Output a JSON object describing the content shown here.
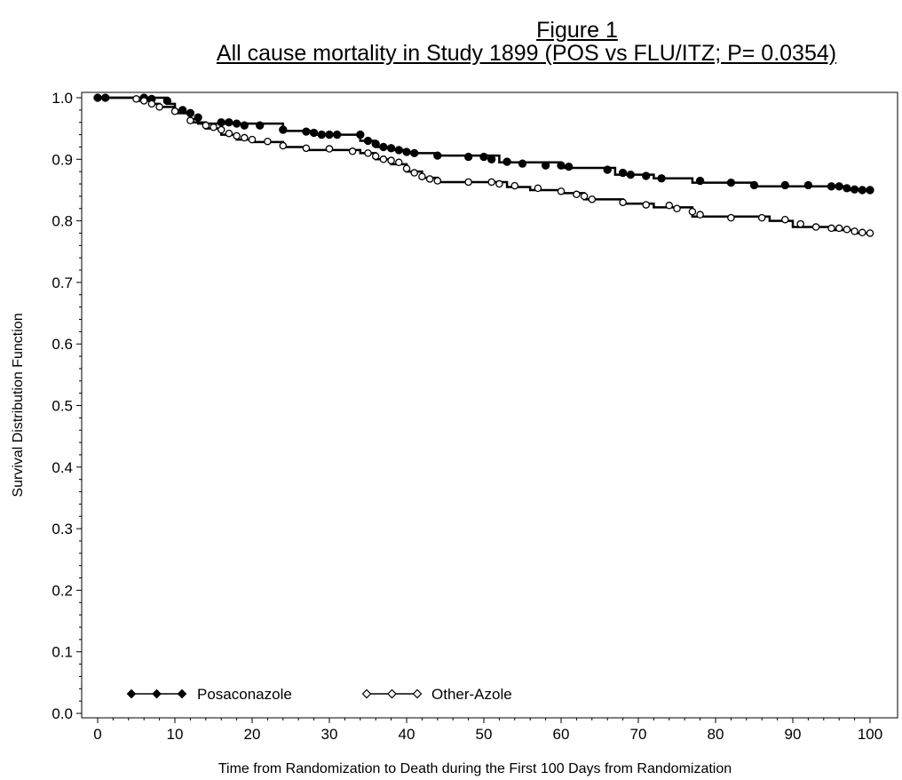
{
  "title": "Figure 1",
  "subtitle": "All cause mortality in Study 1899 (POS vs FLU/ITZ; P= 0.0354)",
  "chart_data": {
    "type": "line",
    "step": true,
    "title": "Figure 1",
    "subtitle": "All cause mortality in Study 1899 (POS vs FLU/ITZ; P= 0.0354)",
    "xlabel": "Time from Randomization to Death during the First 100 Days from Randomization",
    "ylabel": "Survival Distribution Function",
    "xlim": [
      0,
      100
    ],
    "ylim": [
      0.0,
      1.0
    ],
    "x_ticks": [
      "0",
      "10",
      "20",
      "30",
      "40",
      "50",
      "60",
      "70",
      "80",
      "90",
      "100"
    ],
    "y_ticks": [
      "0.0",
      "0.1",
      "0.2",
      "0.3",
      "0.4",
      "0.5",
      "0.6",
      "0.7",
      "0.8",
      "0.9",
      "1.0"
    ],
    "grid": false,
    "legend_position": "bottom-left",
    "series": [
      {
        "name": "Posaconazole",
        "marker": "filled-circle",
        "color": "#000000",
        "steps": [
          [
            0,
            1.0
          ],
          [
            9,
            0.99
          ],
          [
            10,
            0.98
          ],
          [
            11,
            0.975
          ],
          [
            12,
            0.965
          ],
          [
            13,
            0.958
          ],
          [
            24,
            0.946
          ],
          [
            28,
            0.94
          ],
          [
            34,
            0.93
          ],
          [
            36,
            0.92
          ],
          [
            38,
            0.915
          ],
          [
            40,
            0.91
          ],
          [
            44,
            0.906
          ],
          [
            52,
            0.895
          ],
          [
            60,
            0.886
          ],
          [
            67,
            0.875
          ],
          [
            72,
            0.869
          ],
          [
            77,
            0.862
          ],
          [
            85,
            0.856
          ],
          [
            97,
            0.85
          ],
          [
            100,
            0.85
          ]
        ],
        "markers": [
          [
            0,
            1.0
          ],
          [
            1,
            1.0
          ],
          [
            6,
            1.0
          ],
          [
            7,
            0.998
          ],
          [
            9,
            0.995
          ],
          [
            11,
            0.98
          ],
          [
            12,
            0.975
          ],
          [
            13,
            0.968
          ],
          [
            16,
            0.96
          ],
          [
            17,
            0.96
          ],
          [
            18,
            0.958
          ],
          [
            19,
            0.955
          ],
          [
            21,
            0.955
          ],
          [
            24,
            0.948
          ],
          [
            27,
            0.945
          ],
          [
            28,
            0.943
          ],
          [
            29,
            0.94
          ],
          [
            30,
            0.94
          ],
          [
            31,
            0.94
          ],
          [
            34,
            0.94
          ],
          [
            35,
            0.93
          ],
          [
            36,
            0.925
          ],
          [
            37,
            0.92
          ],
          [
            38,
            0.918
          ],
          [
            39,
            0.915
          ],
          [
            40,
            0.912
          ],
          [
            41,
            0.91
          ],
          [
            44,
            0.906
          ],
          [
            48,
            0.904
          ],
          [
            50,
            0.904
          ],
          [
            51,
            0.9
          ],
          [
            53,
            0.896
          ],
          [
            55,
            0.893
          ],
          [
            58,
            0.89
          ],
          [
            60,
            0.89
          ],
          [
            61,
            0.888
          ],
          [
            66,
            0.883
          ],
          [
            68,
            0.878
          ],
          [
            69,
            0.875
          ],
          [
            71,
            0.873
          ],
          [
            73,
            0.869
          ],
          [
            78,
            0.865
          ],
          [
            82,
            0.862
          ],
          [
            85,
            0.858
          ],
          [
            89,
            0.858
          ],
          [
            92,
            0.858
          ],
          [
            95,
            0.856
          ],
          [
            96,
            0.856
          ],
          [
            97,
            0.853
          ],
          [
            98,
            0.851
          ],
          [
            99,
            0.85
          ],
          [
            100,
            0.85
          ]
        ]
      },
      {
        "name": "Other-Azole",
        "marker": "open-circle",
        "color": "#000000",
        "steps": [
          [
            0,
            1.0
          ],
          [
            5,
            0.995
          ],
          [
            7,
            0.99
          ],
          [
            8,
            0.985
          ],
          [
            10,
            0.975
          ],
          [
            12,
            0.96
          ],
          [
            14,
            0.95
          ],
          [
            16,
            0.94
          ],
          [
            18,
            0.932
          ],
          [
            20,
            0.928
          ],
          [
            24,
            0.92
          ],
          [
            27,
            0.915
          ],
          [
            34,
            0.91
          ],
          [
            36,
            0.9
          ],
          [
            38,
            0.892
          ],
          [
            40,
            0.88
          ],
          [
            42,
            0.87
          ],
          [
            44,
            0.863
          ],
          [
            53,
            0.855
          ],
          [
            56,
            0.85
          ],
          [
            60,
            0.845
          ],
          [
            63,
            0.835
          ],
          [
            68,
            0.828
          ],
          [
            72,
            0.822
          ],
          [
            77,
            0.807
          ],
          [
            87,
            0.8
          ],
          [
            90,
            0.79
          ],
          [
            95,
            0.785
          ],
          [
            98,
            0.78
          ],
          [
            100,
            0.78
          ]
        ],
        "markers": [
          [
            5,
            0.998
          ],
          [
            6,
            0.995
          ],
          [
            7,
            0.99
          ],
          [
            8,
            0.985
          ],
          [
            10,
            0.978
          ],
          [
            12,
            0.963
          ],
          [
            14,
            0.955
          ],
          [
            15,
            0.952
          ],
          [
            16,
            0.948
          ],
          [
            17,
            0.942
          ],
          [
            18,
            0.938
          ],
          [
            19,
            0.935
          ],
          [
            20,
            0.932
          ],
          [
            22,
            0.929
          ],
          [
            24,
            0.922
          ],
          [
            27,
            0.918
          ],
          [
            30,
            0.917
          ],
          [
            33,
            0.913
          ],
          [
            35,
            0.91
          ],
          [
            36,
            0.905
          ],
          [
            37,
            0.9
          ],
          [
            38,
            0.898
          ],
          [
            39,
            0.895
          ],
          [
            40,
            0.885
          ],
          [
            41,
            0.878
          ],
          [
            42,
            0.872
          ],
          [
            43,
            0.868
          ],
          [
            44,
            0.865
          ],
          [
            48,
            0.863
          ],
          [
            51,
            0.863
          ],
          [
            52,
            0.86
          ],
          [
            54,
            0.857
          ],
          [
            57,
            0.853
          ],
          [
            60,
            0.848
          ],
          [
            62,
            0.843
          ],
          [
            63,
            0.84
          ],
          [
            64,
            0.835
          ],
          [
            68,
            0.83
          ],
          [
            71,
            0.826
          ],
          [
            74,
            0.825
          ],
          [
            75,
            0.82
          ],
          [
            77,
            0.815
          ],
          [
            78,
            0.81
          ],
          [
            82,
            0.805
          ],
          [
            86,
            0.805
          ],
          [
            89,
            0.802
          ],
          [
            91,
            0.795
          ],
          [
            93,
            0.79
          ],
          [
            95,
            0.788
          ],
          [
            96,
            0.788
          ],
          [
            97,
            0.786
          ],
          [
            98,
            0.783
          ],
          [
            99,
            0.781
          ],
          [
            100,
            0.78
          ]
        ]
      }
    ]
  }
}
